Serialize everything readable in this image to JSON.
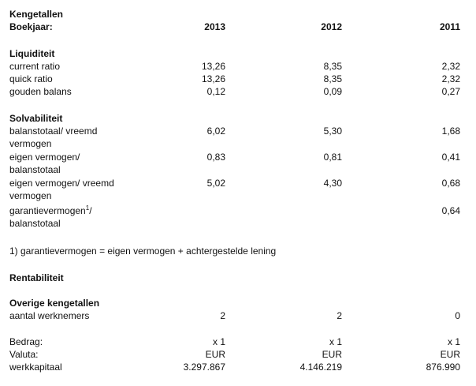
{
  "header": {
    "title": "Kengetallen",
    "year_label": "Boekjaar:",
    "years": [
      "2013",
      "2012",
      "2011"
    ]
  },
  "liquiditeit": {
    "heading": "Liquiditeit",
    "rows": [
      {
        "label": "current ratio",
        "v2013": "13,26",
        "v2012": "8,35",
        "v2011": "2,32"
      },
      {
        "label": "quick ratio",
        "v2013": "13,26",
        "v2012": "8,35",
        "v2011": "2,32"
      },
      {
        "label": "gouden balans",
        "v2013": "0,12",
        "v2012": "0,09",
        "v2011": "0,27"
      }
    ]
  },
  "solvabiliteit": {
    "heading": "Solvabiliteit",
    "rows": [
      {
        "label1": "balanstotaal/ vreemd",
        "label2": "vermogen",
        "v2013": "6,02",
        "v2012": "5,30",
        "v2011": "1,68"
      },
      {
        "label1": "eigen vermogen/",
        "label2": "balanstotaal",
        "v2013": "0,83",
        "v2012": "0,81",
        "v2011": "0,41"
      },
      {
        "label1": "eigen vermogen/ vreemd",
        "label2": "vermogen",
        "v2013": "5,02",
        "v2012": "4,30",
        "v2011": "0,68"
      },
      {
        "label1": "garantievermogen",
        "sup": "1",
        "label1_suffix": "/",
        "label2": "balanstotaal",
        "v2013": "",
        "v2012": "",
        "v2011": "0,64"
      }
    ]
  },
  "footnote": "1) garantievermogen = eigen vermogen + achtergestelde lening",
  "rentabiliteit": {
    "heading": "Rentabiliteit"
  },
  "overige": {
    "heading": "Overige kengetallen",
    "rows": [
      {
        "label": "aantal werknemers",
        "v2013": "2",
        "v2012": "2",
        "v2011": "0"
      }
    ]
  },
  "bedrag": {
    "rows": [
      {
        "label": "Bedrag:",
        "v2013": "x 1",
        "v2012": "x 1",
        "v2011": "x 1"
      },
      {
        "label": "Valuta:",
        "v2013": "EUR",
        "v2012": "EUR",
        "v2011": "EUR"
      },
      {
        "label": "werkkapitaal",
        "v2013": "3.297.867",
        "v2012": "4.146.219",
        "v2011": "876.990"
      }
    ]
  }
}
